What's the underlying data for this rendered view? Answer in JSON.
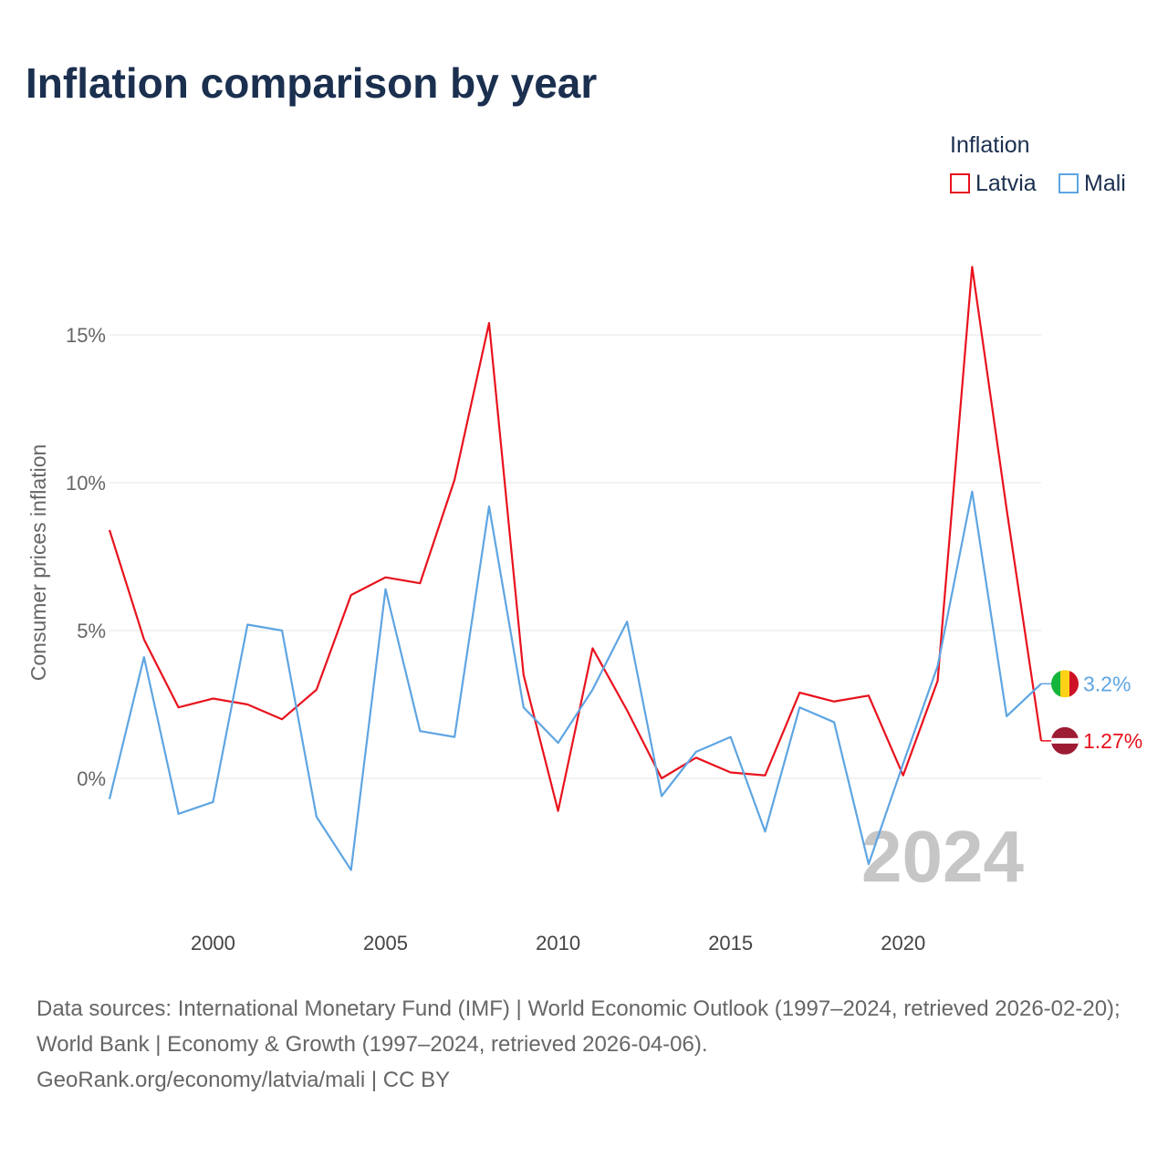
{
  "page": {
    "title": "Inflation comparison by year",
    "source_line": "Data sources: International Monetary Fund (IMF) | World Economic Outlook (1997–2024, retrieved 2026-02-20); World Bank | Economy & Growth (1997–2024, retrieved 2026-04-06).",
    "credit_line": "GeoRank.org/economy/latvia/mali | CC BY"
  },
  "legend": {
    "title": "Inflation",
    "items": [
      {
        "label": "Latvia",
        "color": "#e8121d"
      },
      {
        "label": "Mali",
        "color": "#5ea5e2"
      }
    ]
  },
  "chart_data": {
    "type": "line",
    "title": "Inflation comparison by year",
    "xlabel": "",
    "ylabel": "Consumer prices inflation",
    "x": [
      1997,
      1998,
      1999,
      2000,
      2001,
      2002,
      2003,
      2004,
      2005,
      2006,
      2007,
      2008,
      2009,
      2010,
      2011,
      2012,
      2013,
      2014,
      2015,
      2016,
      2017,
      2018,
      2019,
      2020,
      2021,
      2022,
      2023,
      2024
    ],
    "xlim": [
      1997,
      2024
    ],
    "ylim": [
      -4.5,
      18
    ],
    "xticks": [
      2000,
      2005,
      2010,
      2015,
      2020
    ],
    "yticks": [
      0,
      5,
      10,
      15
    ],
    "ytick_labels": [
      "0%",
      "5%",
      "10%",
      "15%"
    ],
    "grid": true,
    "legend_position": "top-right",
    "watermark_year": "2024",
    "series": [
      {
        "name": "Latvia",
        "color": "#e8121d",
        "end_label": "1.27%",
        "values": [
          8.4,
          4.7,
          2.4,
          2.7,
          2.5,
          2.0,
          3.0,
          6.2,
          6.8,
          6.6,
          10.1,
          15.4,
          3.5,
          -1.1,
          4.4,
          2.3,
          0.0,
          0.7,
          0.2,
          0.1,
          2.9,
          2.6,
          2.8,
          0.1,
          3.3,
          17.3,
          9.1,
          1.27
        ]
      },
      {
        "name": "Mali",
        "color": "#5ea5e2",
        "end_label": "3.2%",
        "values": [
          -0.7,
          4.1,
          -1.2,
          -0.8,
          5.2,
          5.0,
          -1.3,
          -3.1,
          6.4,
          1.6,
          1.4,
          9.2,
          2.4,
          1.2,
          3.0,
          5.3,
          -0.6,
          0.9,
          1.4,
          -1.8,
          2.4,
          1.9,
          -2.9,
          0.5,
          3.8,
          9.7,
          2.1,
          3.2
        ]
      }
    ]
  }
}
